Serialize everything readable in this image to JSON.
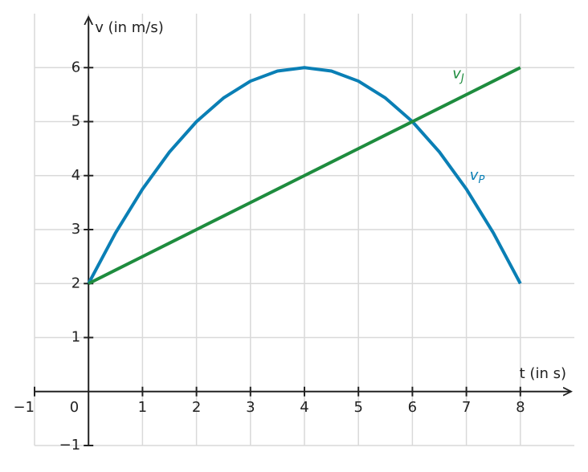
{
  "chart_data": {
    "type": "line",
    "x_label": "t (in s)",
    "y_label": "v (in m/s)",
    "x": [
      0,
      0.5,
      1,
      1.5,
      2,
      2.5,
      3,
      3.5,
      4,
      4.5,
      5,
      5.5,
      6,
      6.5,
      7,
      7.5,
      8
    ],
    "series": [
      {
        "name": "v",
        "name_subscript": "P",
        "color": "#0a7fb5",
        "values": [
          2,
          2.9375,
          3.75,
          4.4375,
          5,
          5.4375,
          5.75,
          5.9375,
          6,
          5.9375,
          5.75,
          5.4375,
          5,
          4.4375,
          3.75,
          2.9375,
          2
        ]
      },
      {
        "name": "v",
        "name_subscript": "J",
        "color": "#1e8c3e",
        "values": [
          2,
          2.25,
          2.5,
          2.75,
          3,
          3.25,
          3.5,
          3.75,
          4,
          4.25,
          4.5,
          4.75,
          5,
          5.25,
          5.5,
          5.75,
          6
        ]
      }
    ],
    "xlim": [
      -1,
      9
    ],
    "ylim": [
      -1,
      7
    ],
    "xticks": [
      {
        "value": -1,
        "label": "−1"
      },
      0,
      1,
      2,
      3,
      4,
      5,
      6,
      7,
      8
    ],
    "yticks": [
      {
        "value": -1,
        "label": "−1"
      },
      1,
      2,
      3,
      4,
      5,
      6
    ],
    "grid": true
  }
}
